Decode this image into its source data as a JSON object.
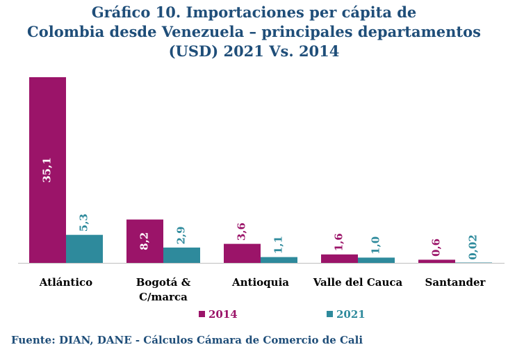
{
  "title": {
    "line1": "Gráfico 10. Importaciones per cápita de",
    "line2": "Colombia desde Venezuela – principales departamentos",
    "line3": "(USD) 2021 Vs. 2014"
  },
  "source": "Fuente: DIAN, DANE - Cálculos Cámara de Comercio de Cali",
  "colors": {
    "s2014": "#9b1469",
    "s2021": "#2e8a9c",
    "title": "#1f4e79"
  },
  "chart_data": {
    "type": "bar",
    "categories": [
      [
        "Atlántico"
      ],
      [
        "Bogotá &",
        "C/marca"
      ],
      [
        "Antioquia"
      ],
      [
        "Valle del Cauca"
      ],
      [
        "Santander"
      ]
    ],
    "series": [
      {
        "name": "2014",
        "values": [
          35.1,
          8.2,
          3.6,
          1.6,
          0.6
        ],
        "labels": [
          "35,1",
          "8,2",
          "3,6",
          "1,6",
          "0,6"
        ]
      },
      {
        "name": "2021",
        "values": [
          5.3,
          2.9,
          1.1,
          1.0,
          0.02
        ],
        "labels": [
          "5,3",
          "2,9",
          "1,1",
          "1,0",
          "0,02"
        ]
      }
    ],
    "ylim": [
      0,
      35.1
    ],
    "legend": "bottom",
    "grid": false
  }
}
